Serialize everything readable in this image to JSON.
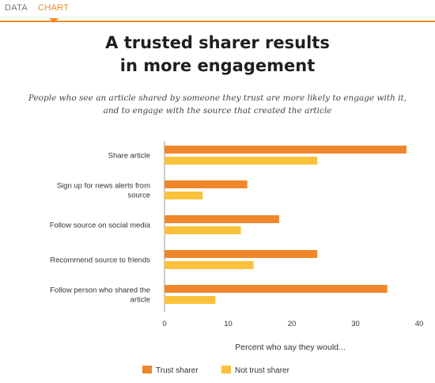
{
  "tabs": {
    "data_label": "DATA",
    "chart_label": "CHART"
  },
  "header": {
    "title_line1": "A trusted sharer results",
    "title_line2": "in more engagement",
    "subtitle": "People who see an article shared by someone they trust are more likely to engage with it, and to engage with the source that created the article"
  },
  "chart_data": {
    "type": "bar",
    "orientation": "horizontal",
    "categories": [
      "Share article",
      "Sign up for news alerts from source",
      "Follow source on social media",
      "Recommend source to friends",
      "Follow person who shared the article"
    ],
    "series": [
      {
        "name": "Trust sharer",
        "color": "#f0862b",
        "values": [
          38,
          13,
          18,
          24,
          35
        ]
      },
      {
        "name": "Not trust sharer",
        "color": "#fac23c",
        "values": [
          24,
          6,
          12,
          14,
          8
        ]
      }
    ],
    "xlabel": "Percent who say they would...",
    "xlim": [
      0,
      40
    ],
    "xticks": [
      0,
      10,
      20,
      30,
      40
    ],
    "grid": false,
    "legend": "bottom"
  }
}
